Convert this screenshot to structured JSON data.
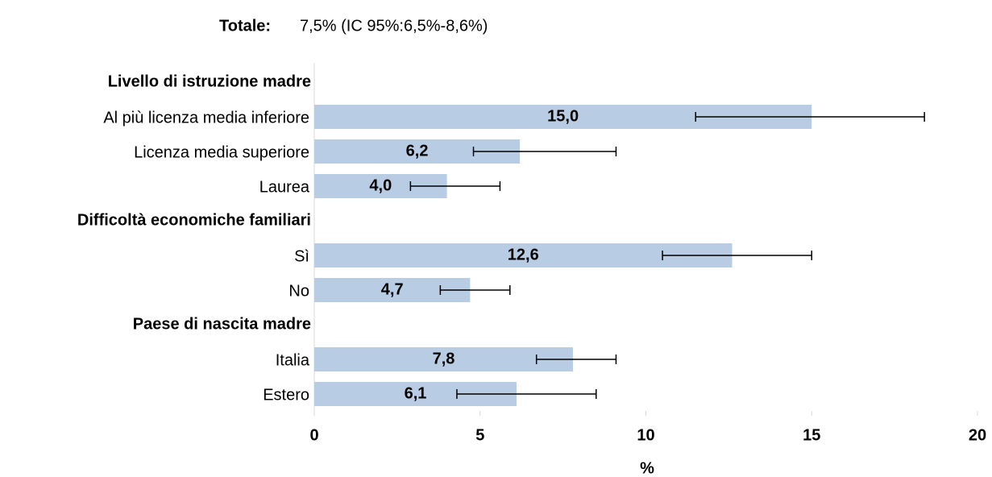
{
  "chart_data": {
    "type": "bar",
    "orientation": "horizontal",
    "title_label": "Totale:",
    "title_value": "7,5% (IC 95%:6,5%-8,6%)",
    "xlabel": "%",
    "color": "#b8cce4",
    "error_color": "#000000",
    "xlim": [
      0,
      20
    ],
    "xticks": [
      0,
      5,
      10,
      15,
      20
    ],
    "groups": [
      {
        "name": "Livello di istruzione madre",
        "categories": [
          "Al più licenza media inferiore",
          "Licenza media superiore",
          "Laurea"
        ],
        "values": [
          15.0,
          6.2,
          4.0
        ],
        "value_labels": [
          "15,0",
          "6,2",
          "4,0"
        ],
        "lower": [
          11.5,
          4.8,
          2.9
        ],
        "upper": [
          18.4,
          9.1,
          5.6
        ]
      },
      {
        "name": "Difficoltà economiche familiari",
        "categories": [
          "Sì",
          "No"
        ],
        "values": [
          12.6,
          4.7
        ],
        "value_labels": [
          "12,6",
          "4,7"
        ],
        "lower": [
          10.5,
          3.8
        ],
        "upper": [
          15.0,
          5.9
        ]
      },
      {
        "name": "Paese di nascita madre",
        "categories": [
          "Italia",
          "Estero"
        ],
        "values": [
          7.8,
          6.1
        ],
        "value_labels": [
          "7,8",
          "6,1"
        ],
        "lower": [
          6.7,
          4.3
        ],
        "upper": [
          9.1,
          8.5
        ]
      }
    ]
  }
}
